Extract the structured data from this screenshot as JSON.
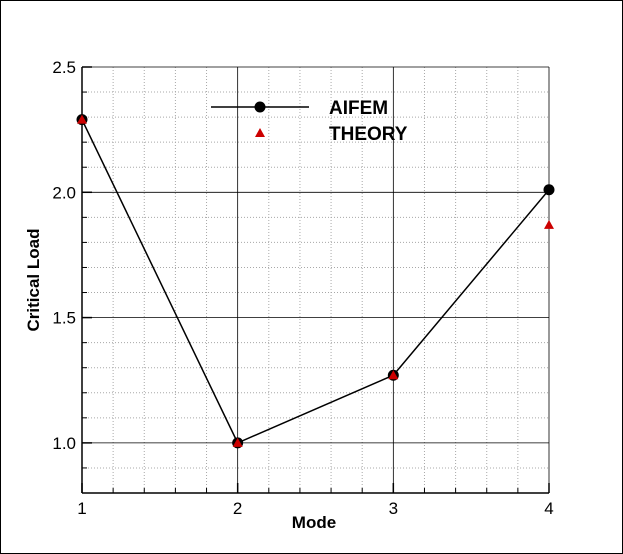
{
  "chart_data": {
    "type": "line",
    "xlabel": "Mode",
    "ylabel": "Critical Load",
    "xlim": [
      1,
      4
    ],
    "ylim": [
      0.8,
      2.5
    ],
    "x_ticks": [
      "1",
      "2",
      "3",
      "4"
    ],
    "y_ticks": [
      "1.0",
      "1.5",
      "2.0",
      "2.5"
    ],
    "grid": true,
    "legend_position": "top",
    "x": [
      1,
      2,
      3,
      4
    ],
    "series": [
      {
        "name": "AIFEM",
        "style": "line-circle",
        "color": "#000000",
        "values": [
          2.29,
          1.0,
          1.27,
          2.01
        ]
      },
      {
        "name": "THEORY",
        "style": "triangle",
        "color": "#cc0000",
        "values": [
          2.29,
          1.0,
          1.27,
          1.87
        ]
      }
    ]
  }
}
